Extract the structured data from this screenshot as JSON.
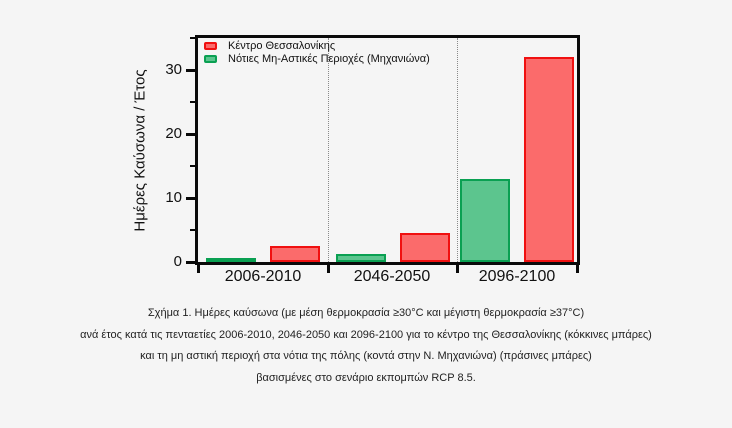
{
  "figure": {
    "caption_lines": [
      "Σχήμα 1. Ημέρες καύσωνα (με μέση θερμοκρασία ≥30°C και μέγιστη θερμοκρασία ≥37°C)",
      "ανά έτος κατά τις πενταετίες 2006-2010, 2046-2050 και 2096-2100 για το κέντρο της Θεσσαλονίκης (κόκκινες μπάρες)",
      "και τη μη αστική περιοχή στα νότια της πόλης (κοντά στην Ν. Μηχανιώνα) (πράσινες μπάρες)",
      "βασισμένες στο σενάριο εκπομπών RCP 8.5."
    ],
    "background_color": "#f5f5f5"
  },
  "chart_data": {
    "type": "bar",
    "title": "",
    "categories": [
      "2006-2010",
      "2046-2050",
      "2096-2100"
    ],
    "series": [
      {
        "name": "Κέντρο Θεσσαλονίκης",
        "border_color": "#f01010",
        "fill_color": "#fb6b6b",
        "values": [
          2.5,
          4.5,
          32
        ]
      },
      {
        "name": "Νότιες Μη-Αστικές Περιοχές (Μηχανιώνα)",
        "border_color": "#0aa052",
        "fill_color": "#5cc58e",
        "values": [
          0.7,
          1.2,
          13
        ]
      }
    ],
    "xlabel": "",
    "ylabel": "Ημέρες Καύσωνα / Έτος",
    "ylim": [
      0,
      35
    ],
    "yticks_major": [
      0,
      10,
      20,
      30
    ],
    "yticks_minor": [
      5,
      15,
      25,
      35
    ],
    "legend_position": "top-left",
    "grid": "dotted vertical separators between category groups",
    "frame": "thick black box around plot"
  }
}
